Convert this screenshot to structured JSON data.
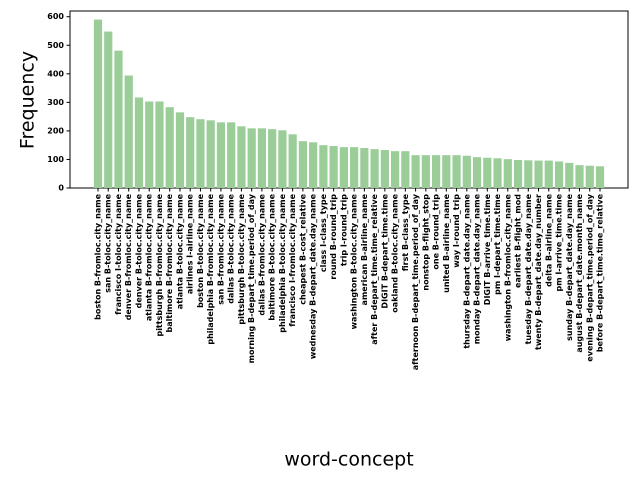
{
  "chart_data": {
    "type": "bar",
    "xlabel": "word-concept",
    "ylabel": "Frequency",
    "color": "#9acd98",
    "ylim": [
      0,
      620
    ],
    "yticks": [
      0,
      100,
      200,
      300,
      400,
      500,
      600
    ],
    "categories": [
      "boston B-fromloc.city_name",
      "san B-toloc.city_name",
      "francisco I-toloc.city_name",
      "denver B-fromloc.city_name",
      "denver B-toloc.city_name",
      "atlanta B-fromloc.city_name",
      "pittsburgh B-fromloc.city_name",
      "baltimore B-fromloc.city_name",
      "atlanta B-toloc.city_name",
      "airlines I-airline_name",
      "boston B-toloc.city_name",
      "philadelphia B-fromloc.city_name",
      "san B-fromloc.city_name",
      "dallas B-toloc.city_name",
      "pittsburgh B-toloc.city_name",
      "morning B-depart_time.period_of_day",
      "dallas B-fromloc.city_name",
      "baltimore B-toloc.city_name",
      "philadelphia B-toloc.city_name",
      "francisco I-fromloc.city_name",
      "cheapest B-cost_relative",
      "wednesday B-depart_date.day_name",
      "class I-class_type",
      "round B-round_trip",
      "trip I-round_trip",
      "washington B-toloc.city_name",
      "american B-airline_name",
      "after B-depart_time.time_relative",
      "DIGIT B-depart_time.time",
      "oakland B-toloc.city_name",
      "first B-class_type",
      "afternoon B-depart_time.period_of_day",
      "nonstop B-flight_stop",
      "one B-round_trip",
      "united B-airline_name",
      "way I-round_trip",
      "thursday B-depart_date.day_name",
      "monday B-depart_date.day_name",
      "DIGIT B-arrive_time.time",
      "pm I-depart_time.time",
      "washington B-fromloc.city_name",
      "earliest B-flight_mod",
      "tuesday B-depart_date.day_name",
      "twenty B-depart_date.day_number",
      "delta B-airline_name",
      "pm I-arrive_time.time",
      "sunday B-depart_date.day_name",
      "august B-depart_date.month_name",
      "evening B-depart_time.period_of_day",
      "before B-depart_time.time_relative"
    ],
    "values": [
      590,
      548,
      481,
      394,
      317,
      303,
      303,
      283,
      265,
      248,
      241,
      237,
      230,
      230,
      216,
      209,
      209,
      206,
      202,
      188,
      164,
      160,
      150,
      147,
      143,
      143,
      140,
      136,
      133,
      129,
      129,
      115,
      115,
      115,
      115,
      115,
      113,
      108,
      106,
      104,
      101,
      98,
      97,
      96,
      96,
      93,
      88,
      80,
      78,
      76
    ],
    "grid": false
  }
}
